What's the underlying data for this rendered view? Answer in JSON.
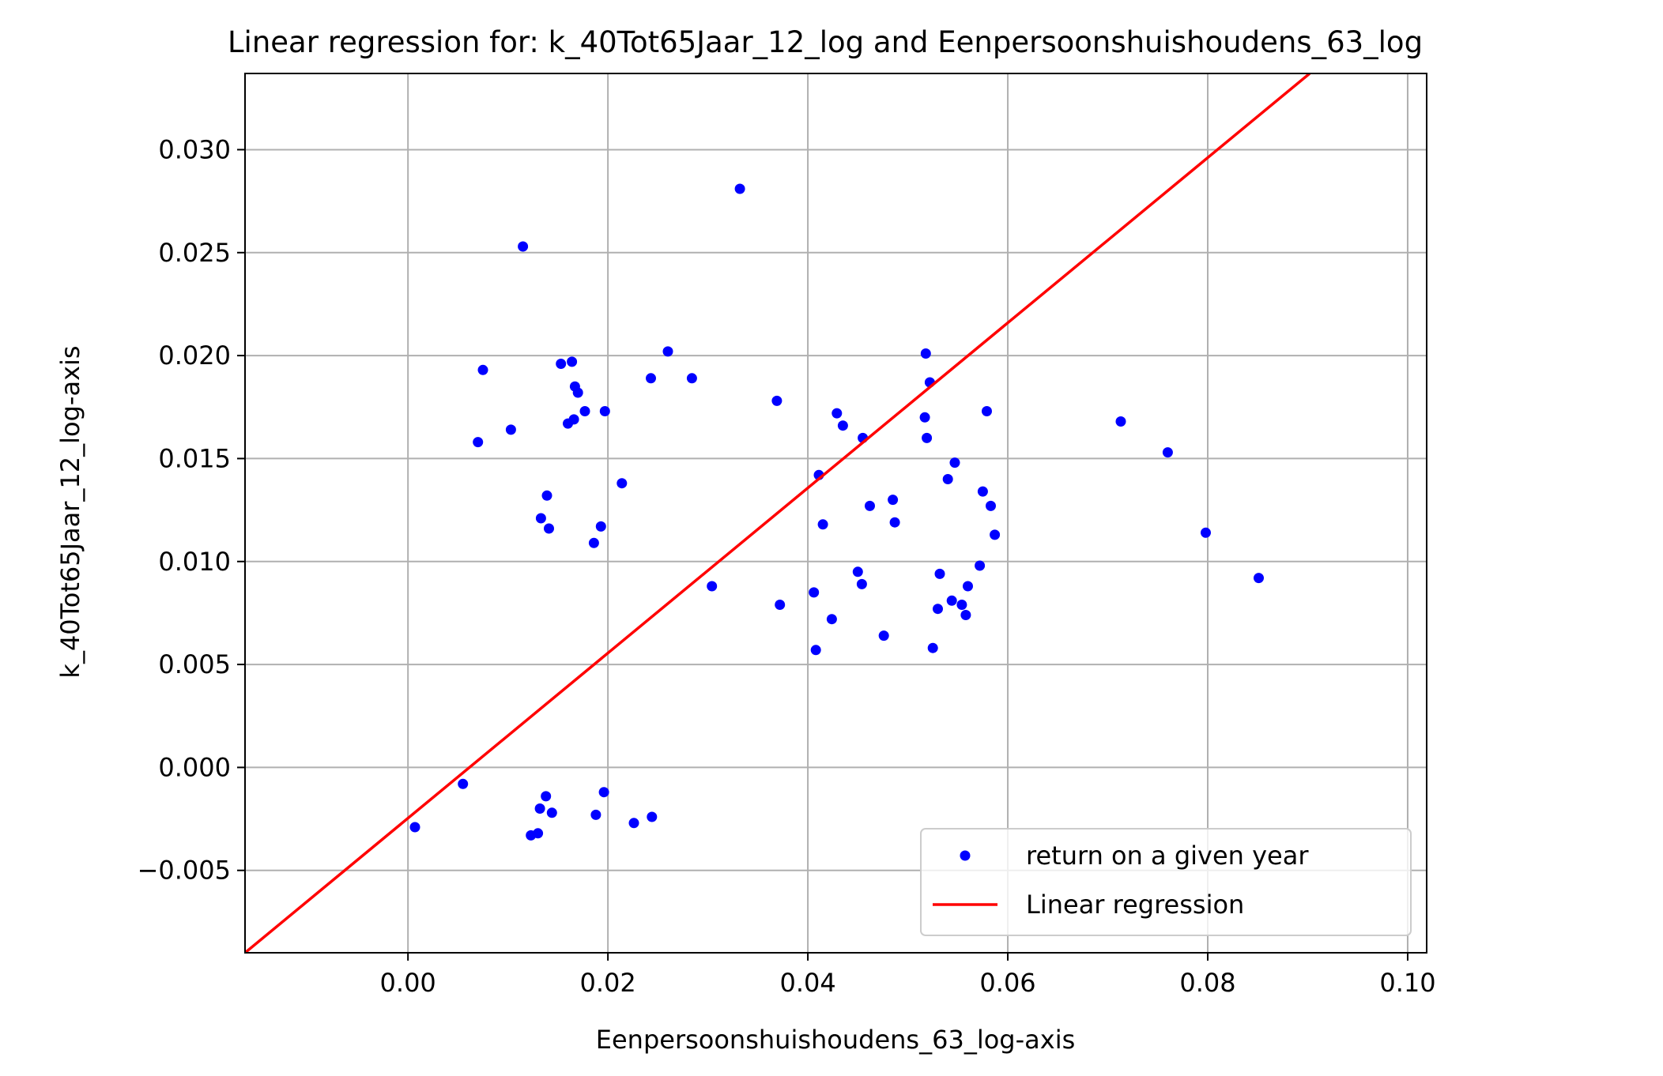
{
  "chart_data": {
    "type": "scatter",
    "title": "Linear regression for: k_40Tot65Jaar_12_log and Eenpersoonshuishoudens_63_log",
    "xlabel": "Eenpersoonshuishoudens_63_log-axis",
    "ylabel": "k_40Tot65Jaar_12_log-axis",
    "xlim": [
      -0.0163,
      0.1019
    ],
    "ylim": [
      -0.009,
      0.0337
    ],
    "x_ticks": [
      0.0,
      0.02,
      0.04,
      0.06,
      0.08,
      0.1
    ],
    "x_tick_labels": [
      "0.00",
      "0.02",
      "0.04",
      "0.06",
      "0.08",
      "0.10"
    ],
    "y_ticks": [
      -0.005,
      0.0,
      0.005,
      0.01,
      0.015,
      0.02,
      0.025,
      0.03
    ],
    "y_tick_labels": [
      "−0.005",
      "0.000",
      "0.005",
      "0.010",
      "0.015",
      "0.020",
      "0.025",
      "0.030"
    ],
    "grid": true,
    "legend_position": "lower-right",
    "series": [
      {
        "name": "return on a given year",
        "kind": "scatter",
        "color": "#0000ff",
        "points": [
          [
            0.0007,
            -0.0029
          ],
          [
            0.0055,
            -0.0008
          ],
          [
            0.007,
            0.0158
          ],
          [
            0.0075,
            0.0193
          ],
          [
            0.0103,
            0.0164
          ],
          [
            0.0115,
            0.0253
          ],
          [
            0.0123,
            -0.0033
          ],
          [
            0.013,
            -0.0032
          ],
          [
            0.0132,
            -0.002
          ],
          [
            0.0133,
            0.0121
          ],
          [
            0.0138,
            -0.0014
          ],
          [
            0.0139,
            0.0132
          ],
          [
            0.0141,
            0.0116
          ],
          [
            0.0144,
            -0.0022
          ],
          [
            0.0153,
            0.0196
          ],
          [
            0.016,
            0.0167
          ],
          [
            0.0164,
            0.0197
          ],
          [
            0.0166,
            0.0169
          ],
          [
            0.0167,
            0.0185
          ],
          [
            0.017,
            0.0182
          ],
          [
            0.0177,
            0.0173
          ],
          [
            0.0186,
            0.0109
          ],
          [
            0.0188,
            -0.0023
          ],
          [
            0.0193,
            0.0117
          ],
          [
            0.0196,
            -0.0012
          ],
          [
            0.0197,
            0.0173
          ],
          [
            0.0214,
            0.0138
          ],
          [
            0.0226,
            -0.0027
          ],
          [
            0.0243,
            0.0189
          ],
          [
            0.0244,
            -0.0024
          ],
          [
            0.026,
            0.0202
          ],
          [
            0.0284,
            0.0189
          ],
          [
            0.0304,
            0.0088
          ],
          [
            0.0332,
            0.0281
          ],
          [
            0.0369,
            0.0178
          ],
          [
            0.0372,
            0.0079
          ],
          [
            0.0406,
            0.0085
          ],
          [
            0.0408,
            0.0057
          ],
          [
            0.0411,
            0.0142
          ],
          [
            0.0415,
            0.0118
          ],
          [
            0.0424,
            0.0072
          ],
          [
            0.0429,
            0.0172
          ],
          [
            0.0435,
            0.0166
          ],
          [
            0.045,
            0.0095
          ],
          [
            0.0454,
            0.0089
          ],
          [
            0.0455,
            0.016
          ],
          [
            0.0462,
            0.0127
          ],
          [
            0.0476,
            0.0064
          ],
          [
            0.0485,
            0.013
          ],
          [
            0.0487,
            0.0119
          ],
          [
            0.0517,
            0.017
          ],
          [
            0.0518,
            0.0201
          ],
          [
            0.0519,
            0.016
          ],
          [
            0.0522,
            0.0187
          ],
          [
            0.0525,
            0.0058
          ],
          [
            0.053,
            0.0077
          ],
          [
            0.0532,
            0.0094
          ],
          [
            0.054,
            0.014
          ],
          [
            0.0544,
            0.0081
          ],
          [
            0.0547,
            0.0148
          ],
          [
            0.0554,
            0.0079
          ],
          [
            0.0558,
            0.0074
          ],
          [
            0.056,
            0.0088
          ],
          [
            0.0572,
            0.0098
          ],
          [
            0.0575,
            0.0134
          ],
          [
            0.0579,
            0.0173
          ],
          [
            0.0583,
            0.0127
          ],
          [
            0.0587,
            0.0113
          ],
          [
            0.0713,
            0.0168
          ],
          [
            0.076,
            0.0153
          ],
          [
            0.0798,
            0.0114
          ],
          [
            0.0851,
            0.0092
          ]
        ]
      },
      {
        "name": "Linear regression",
        "kind": "line",
        "color": "#ff0000",
        "points": [
          [
            -0.0163,
            -0.009
          ],
          [
            0.0902,
            0.0337
          ]
        ]
      }
    ]
  }
}
